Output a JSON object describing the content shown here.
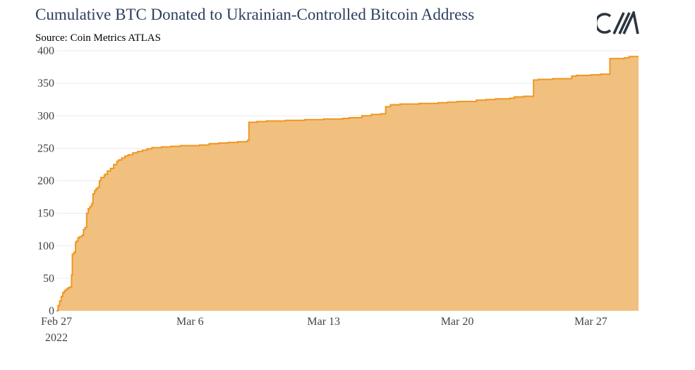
{
  "title": "Cumulative BTC Donated to Ukrainian-Controlled Bitcoin Address",
  "subtitle": "Source: Coin Metrics ATLAS",
  "logo": {
    "text": "CM",
    "icon": "coin-metrics-logo"
  },
  "colors": {
    "line": "#ef9722",
    "fill": "#f1c07f",
    "grid": "#ebebeb",
    "text": "#444444",
    "title": "#2a3f5f"
  },
  "chart_data": {
    "type": "area",
    "title": "Cumulative BTC Donated to Ukrainian-Controlled Bitcoin Address",
    "xlabel": "",
    "ylabel": "",
    "ylim": [
      0,
      400
    ],
    "xlim": [
      "2022-02-27",
      "2022-03-29"
    ],
    "grid": true,
    "legend": "none",
    "x_ticks": [
      {
        "date": "2022-02-27",
        "label": "Feb 27",
        "sublabel": "2022"
      },
      {
        "date": "2022-03-06",
        "label": "Mar 6"
      },
      {
        "date": "2022-03-13",
        "label": "Mar 13"
      },
      {
        "date": "2022-03-20",
        "label": "Mar 20"
      },
      {
        "date": "2022-03-27",
        "label": "Mar 27"
      }
    ],
    "y_ticks": [
      0,
      50,
      100,
      150,
      200,
      250,
      300,
      350,
      400
    ],
    "series": [
      {
        "x": [
          "2022-02-27 00:00",
          "2022-02-27 02:00",
          "2022-02-27 04:00",
          "2022-02-27 06:00",
          "2022-02-27 08:00",
          "2022-02-27 10:00",
          "2022-02-27 12:00",
          "2022-02-27 14:00",
          "2022-02-27 16:00",
          "2022-02-27 18:00",
          "2022-02-27 19:00",
          "2022-02-27 20:00",
          "2022-02-27 22:00",
          "2022-02-28 00:00",
          "2022-02-28 01:00",
          "2022-02-28 03:00",
          "2022-02-28 05:00",
          "2022-02-28 08:00",
          "2022-02-28 10:00",
          "2022-02-28 12:00",
          "2022-02-28 14:00",
          "2022-02-28 16:00",
          "2022-02-28 18:00",
          "2022-02-28 20:00",
          "2022-02-28 21:00",
          "2022-02-28 22:00",
          "2022-03-01 00:00",
          "2022-03-01 02:00",
          "2022-03-01 04:00",
          "2022-03-01 06:00",
          "2022-03-01 08:00",
          "2022-03-01 12:00",
          "2022-03-01 13:00",
          "2022-03-01 16:00",
          "2022-03-01 20:00",
          "2022-03-02 00:00",
          "2022-03-02 04:00",
          "2022-03-02 06:00",
          "2022-03-02 10:00",
          "2022-03-02 14:00",
          "2022-03-02 18:00",
          "2022-03-03 00:00",
          "2022-03-03 06:00",
          "2022-03-03 12:00",
          "2022-03-03 18:00",
          "2022-03-04 00:00",
          "2022-03-04 12:00",
          "2022-03-05 00:00",
          "2022-03-05 12:00",
          "2022-03-06 00:00",
          "2022-03-06 12:00",
          "2022-03-07 00:00",
          "2022-03-07 12:00",
          "2022-03-08 00:00",
          "2022-03-08 12:00",
          "2022-03-09 00:00",
          "2022-03-09 02:00",
          "2022-03-09 12:00",
          "2022-03-10 00:00",
          "2022-03-11 00:00",
          "2022-03-12 00:00",
          "2022-03-13 00:00",
          "2022-03-14 00:00",
          "2022-03-14 08:00",
          "2022-03-15 00:00",
          "2022-03-15 12:00",
          "2022-03-16 00:00",
          "2022-03-16 06:00",
          "2022-03-16 12:00",
          "2022-03-17 00:00",
          "2022-03-18 00:00",
          "2022-03-19 00:00",
          "2022-03-19 12:00",
          "2022-03-20 00:00",
          "2022-03-21 00:00",
          "2022-03-21 12:00",
          "2022-03-22 00:00",
          "2022-03-22 18:00",
          "2022-03-23 00:00",
          "2022-03-23 12:00",
          "2022-03-24 00:00",
          "2022-03-24 06:00",
          "2022-03-25 00:00",
          "2022-03-26 00:00",
          "2022-03-26 06:00",
          "2022-03-27 00:00",
          "2022-03-27 12:00",
          "2022-03-28 00:00",
          "2022-03-28 18:00",
          "2022-03-29 00:00"
        ],
        "y": [
          0,
          8,
          15,
          22,
          28,
          31,
          33,
          35,
          36,
          37,
          55,
          87,
          90,
          105,
          107,
          112,
          114,
          116,
          125,
          128,
          150,
          157,
          160,
          163,
          166,
          180,
          185,
          188,
          190,
          200,
          205,
          208,
          210,
          215,
          219,
          225,
          230,
          232,
          235,
          238,
          240,
          243,
          245,
          247,
          249,
          251,
          252,
          253,
          254,
          254,
          255,
          257,
          258,
          259,
          260,
          262,
          290,
          291,
          292,
          293,
          294,
          295,
          296,
          297,
          300,
          302,
          303,
          314,
          317,
          318,
          319,
          320,
          321,
          322,
          324,
          325,
          326,
          327,
          329,
          330,
          355,
          356,
          357,
          361,
          362,
          363,
          364,
          388,
          389,
          391
        ]
      }
    ]
  }
}
